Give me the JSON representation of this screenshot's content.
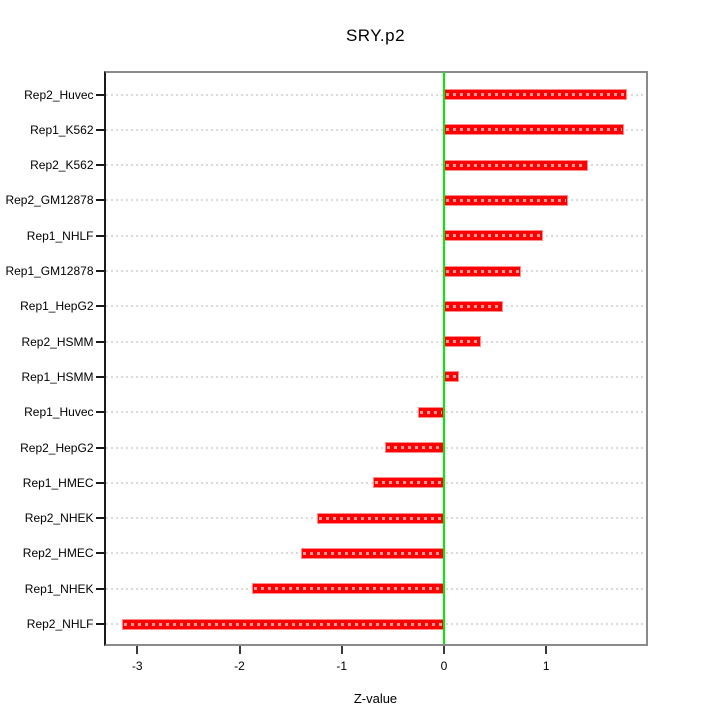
{
  "chart_data": {
    "type": "bar",
    "orientation": "horizontal",
    "title": "SRY.p2",
    "xlabel": "Z-value",
    "categories": [
      "Rep2_Huvec",
      "Rep1_K562",
      "Rep2_K562",
      "Rep2_GM12878",
      "Rep1_NHLF",
      "Rep1_GM12878",
      "Rep1_HepG2",
      "Rep2_HSMM",
      "Rep1_HSMM",
      "Rep1_Huvec",
      "Rep2_HepG2",
      "Rep1_HMEC",
      "Rep2_NHEK",
      "Rep2_HMEC",
      "Rep1_NHEK",
      "Rep2_NHLF"
    ],
    "values": [
      1.79,
      1.76,
      1.41,
      1.21,
      0.97,
      0.75,
      0.58,
      0.36,
      0.15,
      -0.25,
      -0.58,
      -0.69,
      -1.24,
      -1.4,
      -1.88,
      -3.15
    ],
    "xticks": [
      "-3",
      "-2",
      "-1",
      "0",
      "1"
    ],
    "xtick_values": [
      -3,
      -2,
      -1,
      0,
      1
    ],
    "xlim": [
      -3.33,
      1.99
    ],
    "zero_line": 0,
    "grid": true,
    "legend": null,
    "colors": {
      "bar_fill": "#FF0000",
      "bar_edge": "#FF8C8C",
      "zero_line": "#00EE00",
      "grid_line": "#DADADA",
      "box_border": "#8A8A8A",
      "axis_line": "#1A1A1A",
      "text": "#000000",
      "background": "#FFFFFF"
    }
  }
}
